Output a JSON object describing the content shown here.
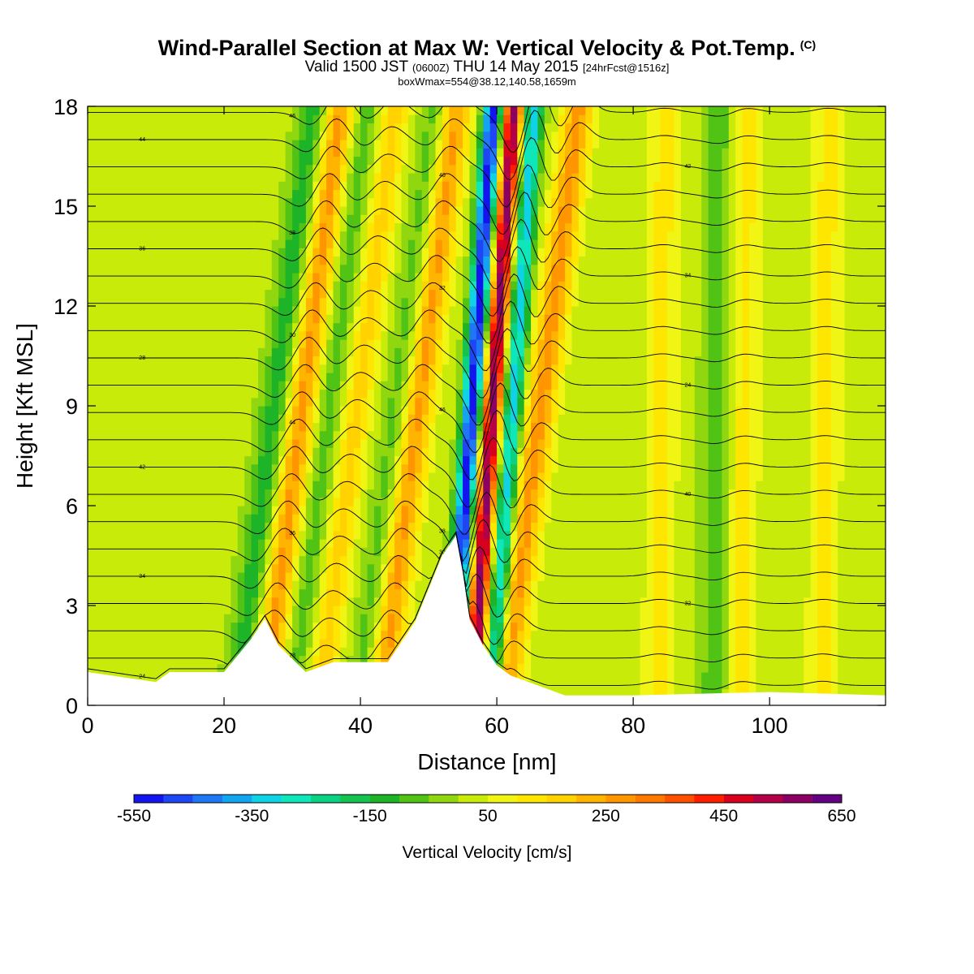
{
  "header": {
    "title": "Wind-Parallel Section at Max W: Vertical Velocity & Pot.Temp.",
    "copyright": "(C)",
    "valid_prefix": "Valid 1500 JST",
    "valid_utc": "(0600Z)",
    "valid_date": "THU 14 May 2015",
    "forecast": "[24hrFcst@1516z]",
    "box_info": "boxWmax=554@38.12,140.58,1659m"
  },
  "chart_data": {
    "type": "heatmap",
    "xlabel": "Distance [nm]",
    "ylabel": "Height [Kft MSL]",
    "xlim": [
      0,
      117
    ],
    "ylim": [
      0,
      18
    ],
    "xticks": [
      0,
      20,
      40,
      60,
      80,
      100
    ],
    "yticks": [
      0,
      3,
      6,
      9,
      12,
      15,
      18
    ],
    "colorbar": {
      "label": "Vertical Velocity [cm/s]",
      "min": -550,
      "max": 650,
      "step": 50,
      "tick_labels": [
        "-550",
        "-350",
        "-150",
        "50",
        "250",
        "450",
        "650"
      ],
      "colors": [
        "#1414f0",
        "#1e46f5",
        "#1e78f5",
        "#14a5f0",
        "#0fd2e6",
        "#0fe6b9",
        "#0ad282",
        "#14c350",
        "#1eb428",
        "#50c314",
        "#91d70f",
        "#c8eb0a",
        "#f0f514",
        "#ffe600",
        "#ffd200",
        "#ffb400",
        "#ff9600",
        "#ff7800",
        "#ff5000",
        "#ff1e00",
        "#d7001e",
        "#b40046",
        "#8c0064",
        "#640082"
      ]
    },
    "updraft_max": {
      "label": "boxWmax",
      "value_cms": 554,
      "lat": 38.12,
      "lon": 140.58,
      "height_m": 1659
    },
    "terrain_kft": {
      "x": [
        0,
        10,
        12,
        20,
        24,
        26,
        28,
        32,
        36,
        40,
        44,
        48,
        52,
        54,
        55,
        56,
        58,
        60,
        62,
        66,
        70,
        80,
        100,
        117
      ],
      "y": [
        1.0,
        0.7,
        1.0,
        1.0,
        2.0,
        2.6,
        1.8,
        1.0,
        1.3,
        1.3,
        1.3,
        2.5,
        4.5,
        5.1,
        4.0,
        2.6,
        1.8,
        1.2,
        0.9,
        0.6,
        0.3,
        0.3,
        0.4,
        0.3
      ]
    },
    "vertical_velocity_bands": [
      {
        "x": 29,
        "peak_cms": 250,
        "type": "updraft"
      },
      {
        "x": 25,
        "peak_cms": -150,
        "type": "downdraft"
      },
      {
        "x": 37,
        "peak_cms": 150,
        "type": "updraft"
      },
      {
        "x": 33,
        "peak_cms": -100,
        "type": "downdraft"
      },
      {
        "x": 46,
        "peak_cms": 250,
        "type": "updraft"
      },
      {
        "x": 43,
        "peak_cms": -100,
        "type": "downdraft"
      },
      {
        "x": 58,
        "peak_cms": 554,
        "type": "updraft"
      },
      {
        "x": 55,
        "peak_cms": -550,
        "type": "downdraft"
      },
      {
        "x": 64,
        "peak_cms": 250,
        "type": "updraft"
      },
      {
        "x": 61,
        "peak_cms": -350,
        "type": "downdraft"
      },
      {
        "x": 84,
        "peak_cms": 100,
        "type": "updraft"
      },
      {
        "x": 92,
        "peak_cms": -100,
        "type": "downdraft"
      },
      {
        "x": 96,
        "peak_cms": 100,
        "type": "updraft"
      },
      {
        "x": 108,
        "peak_cms": 100,
        "type": "updraft"
      }
    ],
    "theta_contours": {
      "label": "Potential temperature",
      "labels": [
        "24",
        "28",
        "30",
        "32",
        "34",
        "36",
        "38",
        "40",
        "42",
        "44",
        "46"
      ]
    }
  }
}
